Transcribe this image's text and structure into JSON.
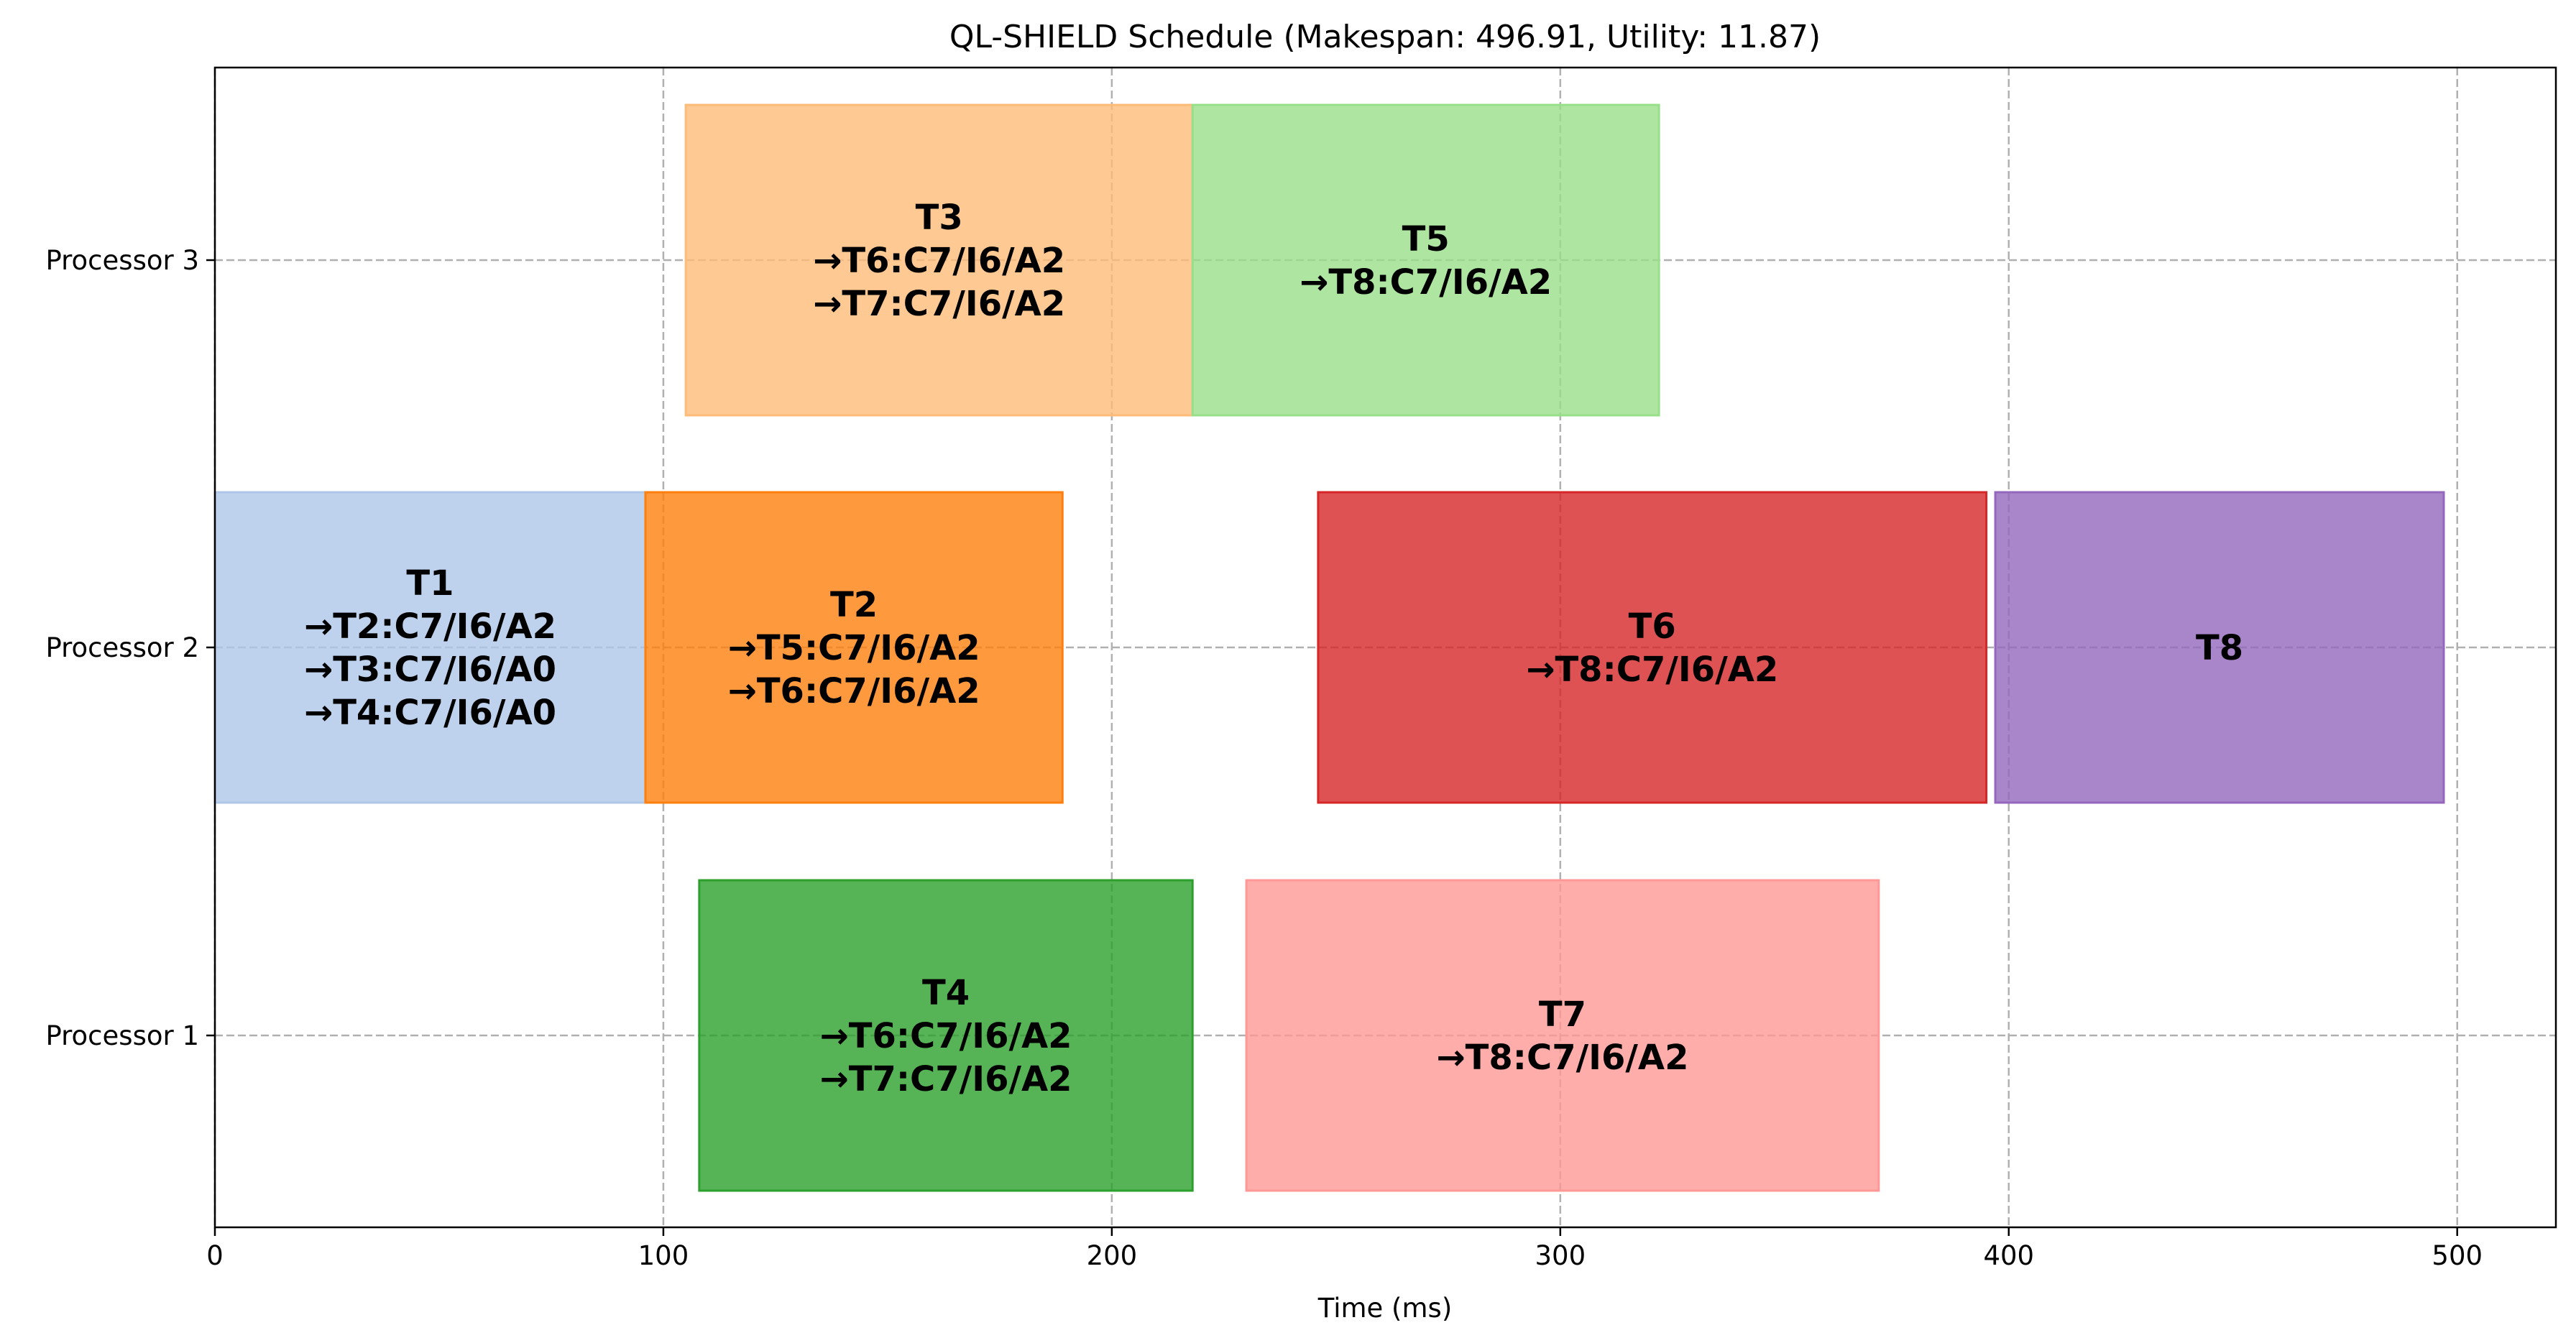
{
  "chart_data": {
    "type": "gantt",
    "title": "QL-SHIELD Schedule (Makespan: 496.91, Utility: 11.87)",
    "xlabel": "Time (ms)",
    "xlim": [
      0,
      522
    ],
    "xticks": [
      0,
      100,
      200,
      300,
      400,
      500
    ],
    "processors": [
      "Processor 1",
      "Processor 2",
      "Processor 3"
    ],
    "grid": true,
    "tasks": [
      {
        "name": "T1",
        "processor": "Processor 2",
        "start": 0,
        "end": 96,
        "color": "#aec7e8",
        "edges": [
          "→T2:C7/I6/A2",
          "→T3:C7/I6/A0",
          "→T4:C7/I6/A0"
        ]
      },
      {
        "name": "T2",
        "processor": "Processor 2",
        "start": 96,
        "end": 189,
        "color": "#ff7f0e",
        "edges": [
          "→T5:C7/I6/A2",
          "→T6:C7/I6/A2"
        ]
      },
      {
        "name": "T3",
        "processor": "Processor 3",
        "start": 105,
        "end": 218,
        "color": "#ffbb78",
        "edges": [
          "→T6:C7/I6/A2",
          "→T7:C7/I6/A2"
        ]
      },
      {
        "name": "T4",
        "processor": "Processor 1",
        "start": 108,
        "end": 218,
        "color": "#2ca02c",
        "edges": [
          "→T6:C7/I6/A2",
          "→T7:C7/I6/A2"
        ]
      },
      {
        "name": "T5",
        "processor": "Processor 3",
        "start": 218,
        "end": 322,
        "color": "#98df8a",
        "edges": [
          "→T8:C7/I6/A2"
        ]
      },
      {
        "name": "T7",
        "processor": "Processor 1",
        "start": 230,
        "end": 371,
        "color": "#ff9896",
        "edges": [
          "→T8:C7/I6/A2"
        ]
      },
      {
        "name": "T6",
        "processor": "Processor 2",
        "start": 246,
        "end": 395,
        "color": "#d62728",
        "edges": [
          "→T8:C7/I6/A2"
        ]
      },
      {
        "name": "T8",
        "processor": "Processor 2",
        "start": 397,
        "end": 497,
        "color": "#9467bd",
        "edges": []
      }
    ]
  }
}
